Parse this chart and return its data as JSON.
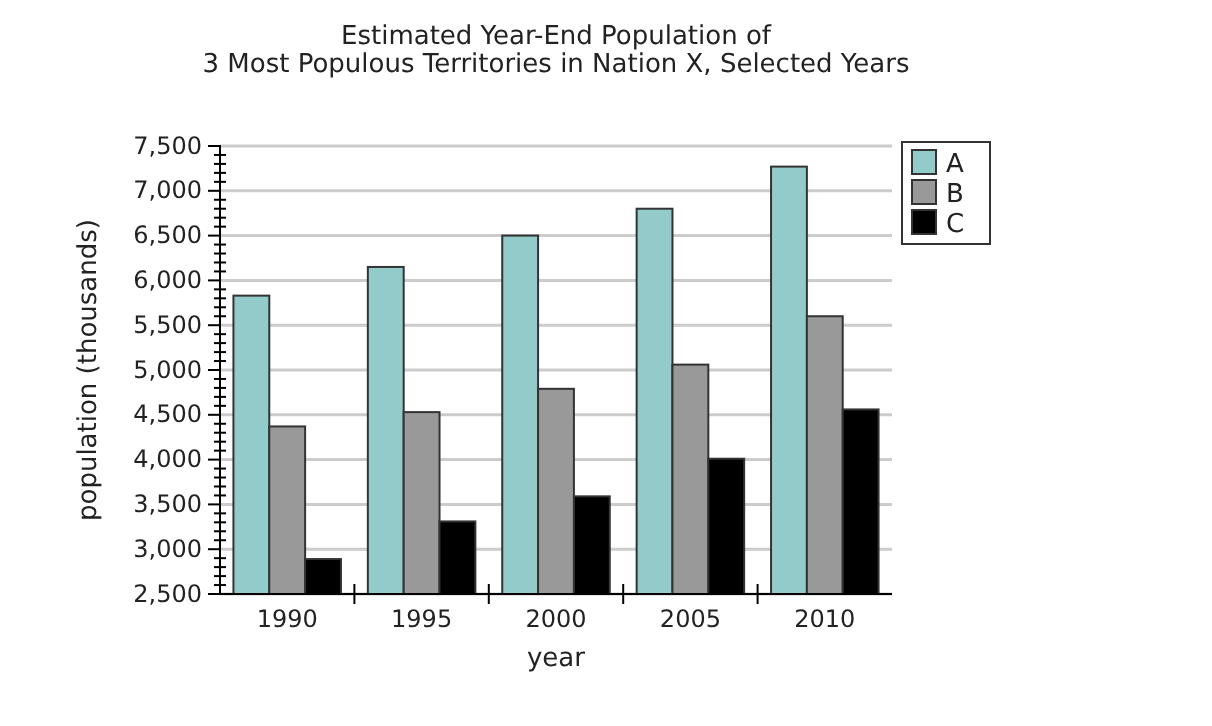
{
  "chart_data": {
    "type": "bar",
    "title": "Estimated Year-End Population of\n3 Most Populous Territories in Nation X, Selected Years",
    "xlabel": "year",
    "ylabel": "population (thousands)",
    "categories": [
      "1990",
      "1995",
      "2000",
      "2005",
      "2010"
    ],
    "series": [
      {
        "name": "A",
        "color": "#93cbcb",
        "values": [
          5830,
          6150,
          6500,
          6800,
          7270
        ]
      },
      {
        "name": "B",
        "color": "#999999",
        "values": [
          4370,
          4530,
          4790,
          5060,
          5600
        ]
      },
      {
        "name": "C",
        "color": "#000000",
        "values": [
          2890,
          3310,
          3590,
          4010,
          4560
        ]
      }
    ],
    "ylim": [
      2500,
      7500
    ],
    "yticks": [
      {
        "value": 2500,
        "label": "2,500"
      },
      {
        "value": 3000,
        "label": "3,000"
      },
      {
        "value": 3500,
        "label": "3,500"
      },
      {
        "value": 4000,
        "label": "4,000"
      },
      {
        "value": 4500,
        "label": "4,500"
      },
      {
        "value": 5000,
        "label": "5,000"
      },
      {
        "value": 5500,
        "label": "5,500"
      },
      {
        "value": 6000,
        "label": "6,000"
      },
      {
        "value": 6500,
        "label": "6,500"
      },
      {
        "value": 7000,
        "label": "7,000"
      },
      {
        "value": 7500,
        "label": "7,500"
      }
    ],
    "grid": "y",
    "legend": "top right"
  }
}
